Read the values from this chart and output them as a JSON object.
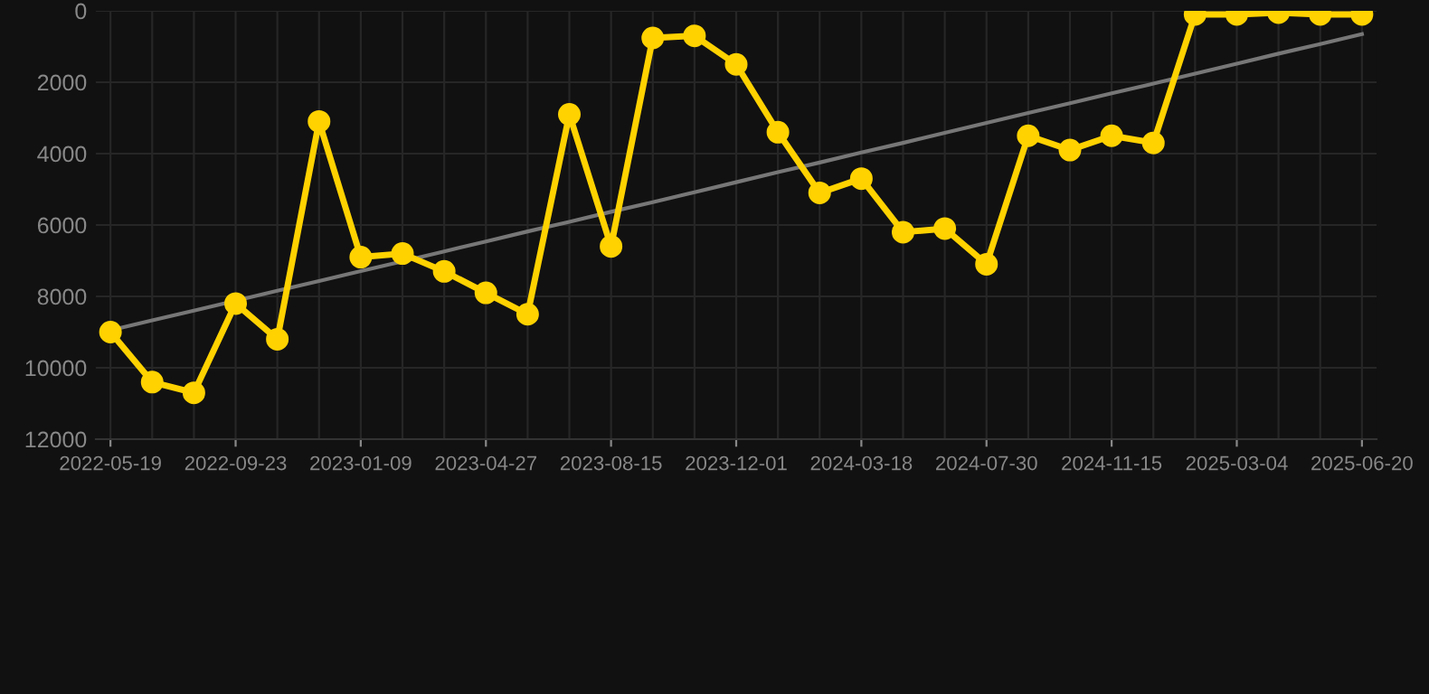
{
  "chart_data": {
    "type": "line",
    "categories": [
      "2022-05-19",
      null,
      null,
      "2022-09-23",
      null,
      null,
      "2023-01-09",
      null,
      null,
      "2023-04-27",
      null,
      null,
      "2023-08-15",
      null,
      null,
      "2023-12-01",
      null,
      null,
      "2024-03-18",
      null,
      null,
      "2024-07-30",
      null,
      null,
      "2024-11-15",
      null,
      null,
      "2025-03-04",
      null,
      null,
      "2025-06-20"
    ],
    "series": [
      {
        "color": "#ffd200",
        "marker": "circle",
        "values": [
          9000,
          10400,
          10700,
          8200,
          9200,
          3100,
          6900,
          6800,
          7300,
          7900,
          8500,
          2900,
          6600,
          760,
          700,
          1500,
          3400,
          5100,
          4700,
          6200,
          6100,
          7100,
          3500,
          3900,
          3500,
          3700,
          100,
          100,
          50,
          100,
          100
        ]
      },
      {
        "color": "#777777",
        "marker": "none",
        "values": [
          8950,
          8670,
          8400,
          8120,
          7840,
          7570,
          7290,
          7020,
          6740,
          6460,
          6180,
          5910,
          5630,
          5360,
          5080,
          4800,
          4520,
          4250,
          3970,
          3700,
          3420,
          3140,
          2860,
          2590,
          2310,
          2040,
          1760,
          1480,
          1200,
          930,
          650
        ]
      }
    ],
    "ylim": [
      12000,
      0
    ],
    "yticks": [
      0,
      2000,
      4000,
      6000,
      8000,
      10000,
      12000
    ],
    "grid": true,
    "line_style": "solid"
  }
}
